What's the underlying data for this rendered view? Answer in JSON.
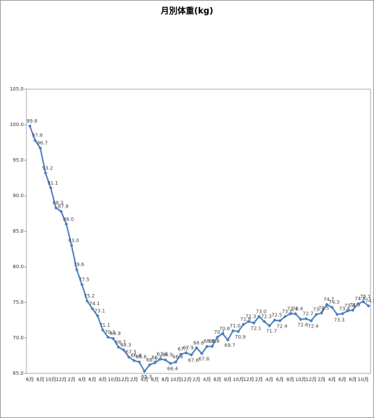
{
  "chart_data": {
    "type": "line",
    "title": "月別体重(kg)",
    "categories": [
      "6月",
      null,
      "8月",
      null,
      "10月",
      null,
      "12月",
      null,
      "2月",
      null,
      "4月",
      null,
      "6月",
      null,
      "8月",
      null,
      "10月",
      null,
      "12月",
      null,
      "2月",
      null,
      "4月",
      null,
      "6月",
      null,
      "8月",
      null,
      "10月",
      null,
      "12月",
      null,
      "2月",
      null,
      "4月",
      null,
      "6月",
      null,
      "8月",
      null,
      "10月",
      null,
      "12月",
      null,
      "2月",
      null,
      "4月",
      null,
      "6月",
      null,
      "8月",
      null,
      "10月",
      null,
      "12月",
      null,
      "2月",
      null,
      "4月",
      null,
      "6月",
      null,
      "8月",
      null,
      "10月",
      null
    ],
    "values": [
      99.8,
      97.8,
      96.7,
      93.2,
      91.1,
      88.3,
      87.8,
      86.0,
      83.0,
      79.6,
      77.5,
      75.2,
      74.1,
      73.1,
      71.1,
      70.1,
      69.9,
      68.7,
      68.3,
      67.3,
      66.8,
      66.6,
      65.3,
      66.2,
      66.5,
      67.0,
      66.9,
      66.4,
      66.6,
      67.7,
      67.9,
      67.6,
      68.6,
      67.8,
      68.8,
      68.8,
      70.1,
      70.6,
      69.7,
      71.0,
      70.9,
      71.9,
      72.3,
      72.1,
      73.0,
      72.3,
      71.7,
      72.5,
      72.4,
      73.0,
      73.4,
      73.4,
      72.6,
      72.7,
      72.4,
      73.3,
      73.5,
      74.7,
      74.3,
      73.3,
      73.4,
      73.8,
      73.9,
      74.8,
      75.1,
      74.5
    ],
    "value_labels": [
      "99.8",
      "97.8",
      "96.7",
      "93.2",
      "91.1",
      "88.3",
      "87.8",
      "86.0",
      "83.0",
      "79.6",
      "77.5",
      "75.2",
      "74.1",
      "73.1",
      "71.1",
      "70.1",
      "69.9",
      "68.7",
      "68.3",
      "67.3",
      "66.8",
      "66.6",
      "65.3",
      "66.2",
      "66.5",
      "67.0",
      "66.9",
      "66.4",
      "66.6",
      "67.7",
      "67.9",
      "67.6",
      "68.6",
      "67.8",
      "68.8",
      "68.8",
      "70.1",
      "70.6",
      "69.7",
      "71.0",
      "70.9",
      "71.9",
      "72.3",
      "72.1",
      "73.0",
      "72.3",
      "71.7",
      "72.5",
      "72.4",
      "73.0",
      "73.4",
      "73.4",
      "72.6",
      "72.7",
      "72.4",
      "73.3",
      "73.5",
      "74.7",
      "74.3",
      "73.3",
      "73.4",
      "73.8",
      "73.9",
      "74.8",
      "75.1",
      "74.5"
    ],
    "color": "#4a7ebb",
    "ylim": [
      65,
      105
    ],
    "yticks": [
      {
        "value": 65,
        "label": "65.0"
      },
      {
        "value": 70,
        "label": "70.0"
      },
      {
        "value": 75,
        "label": "75.0"
      },
      {
        "value": 80,
        "label": "80.0"
      },
      {
        "value": 85,
        "label": "85.0"
      },
      {
        "value": 90,
        "label": "90.0"
      },
      {
        "value": 95,
        "label": "95.0"
      },
      {
        "value": 100,
        "label": "100.0"
      },
      {
        "value": 105,
        "label": "105.0"
      }
    ],
    "grid": false
  }
}
